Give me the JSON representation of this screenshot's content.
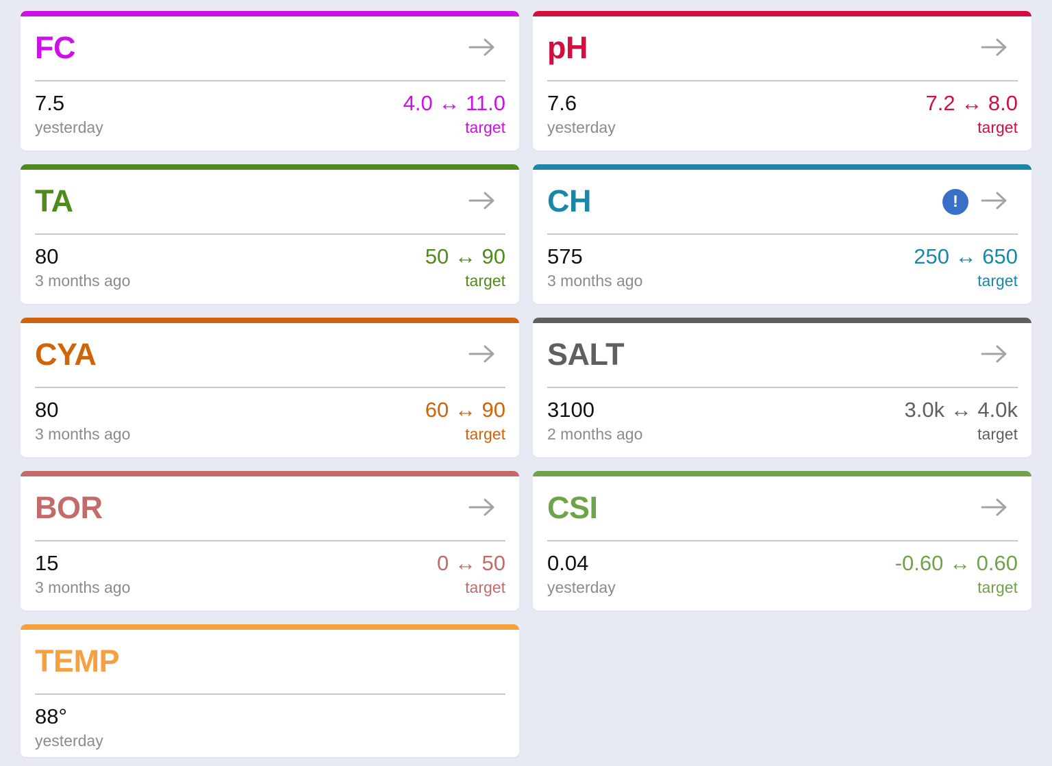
{
  "range_separator": "↔",
  "target_label": "target",
  "cards": [
    {
      "name": "FC",
      "value": "7.5",
      "when": "yesterday",
      "min": "4.0",
      "max": "11.0",
      "color": "#cc11e6",
      "alert": false
    },
    {
      "name": "pH",
      "value": "7.6",
      "when": "yesterday",
      "min": "7.2",
      "max": "8.0",
      "color": "#d2103f",
      "alert": false
    },
    {
      "name": "TA",
      "value": "80",
      "when": "3 months ago",
      "min": "50",
      "max": "90",
      "color": "#4f8a1c",
      "alert": false
    },
    {
      "name": "CH",
      "value": "575",
      "when": "3 months ago",
      "min": "250",
      "max": "650",
      "color": "#1b86a6",
      "alert": true
    },
    {
      "name": "CYA",
      "value": "80",
      "when": "3 months ago",
      "min": "60",
      "max": "90",
      "color": "#cf640c",
      "alert": false
    },
    {
      "name": "SALT",
      "value": "3100",
      "when": "2 months ago",
      "min": "3.0k",
      "max": "4.0k",
      "color": "#5f5f5f",
      "alert": false
    },
    {
      "name": "BOR",
      "value": "15",
      "when": "3 months ago",
      "min": "0",
      "max": "50",
      "color": "#c36a6a",
      "alert": false
    },
    {
      "name": "CSI",
      "value": "0.04",
      "when": "yesterday",
      "min": "-0.60",
      "max": "0.60",
      "color": "#6fa24a",
      "alert": false
    },
    {
      "name": "TEMP",
      "value": "88°",
      "when": "yesterday",
      "min": "",
      "max": "",
      "color": "#f7a040",
      "alert": false
    }
  ],
  "alert_glyph": "!",
  "icons": {
    "arrow": "arrow-right-icon",
    "alert": "exclamation-circle-icon"
  }
}
